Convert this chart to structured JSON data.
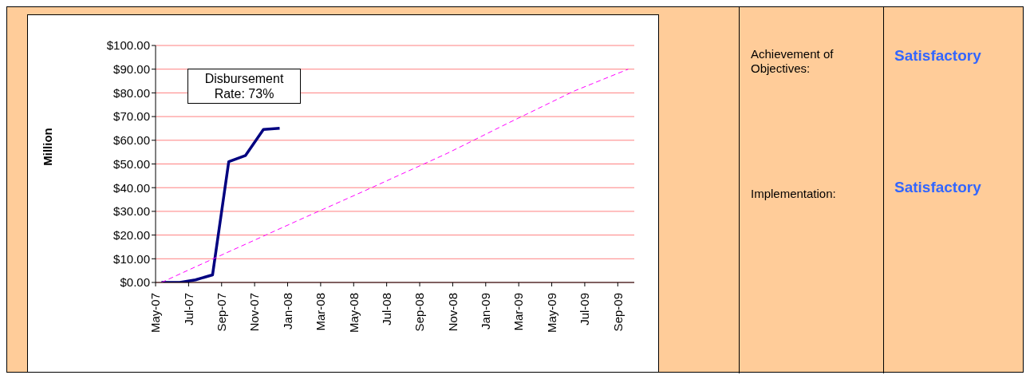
{
  "chart_data": {
    "type": "line",
    "ylabel": "Million",
    "annotations": [
      "Disbursement Rate: 73%",
      "Achievement of Objectives:",
      "Satisfactory",
      "Implementation:",
      "Satisfactory"
    ],
    "series": [
      {
        "color": "#000080",
        "line_style": "solid",
        "x": [
          "2007-05-12",
          "2007-06-15",
          "2007-07-14",
          "2007-08-15",
          "2007-09-14",
          "2007-10-15",
          "2007-11-17",
          "2007-12-17"
        ],
        "values": [
          0,
          0,
          1.1,
          3.2,
          51,
          53.6,
          64.6,
          65.1
        ]
      },
      {
        "color": "#ff00ff",
        "line_style": "dashed",
        "x": [
          "2007-05-12",
          "2007-07-14",
          "2008-01-17",
          "2008-05-17",
          "2008-10-21",
          "2009-02-09",
          "2009-06-12",
          "2009-09-20"
        ],
        "values": [
          0,
          6.6,
          25.8,
          38.2,
          54.4,
          67,
          80.8,
          90
        ]
      }
    ],
    "xlim": [
      "2007-05",
      "2009-10"
    ],
    "xticks": [
      {
        "value": "2007-05",
        "label": "May-07"
      },
      {
        "value": "2007-07",
        "label": "Jul-07"
      },
      {
        "value": "2007-09",
        "label": "Sep-07"
      },
      {
        "value": "2007-11",
        "label": "Nov-07"
      },
      {
        "value": "2008-01",
        "label": "Jan-08"
      },
      {
        "value": "2008-03",
        "label": "Mar-08"
      },
      {
        "value": "2008-05",
        "label": "May-08"
      },
      {
        "value": "2008-07",
        "label": "Jul-08"
      },
      {
        "value": "2008-09",
        "label": "Sep-08"
      },
      {
        "value": "2008-11",
        "label": "Nov-08"
      },
      {
        "value": "2009-01",
        "label": "Jan-09"
      },
      {
        "value": "2009-03",
        "label": "Mar-09"
      },
      {
        "value": "2009-05",
        "label": "May-09"
      },
      {
        "value": "2009-07",
        "label": "Jul-09"
      },
      {
        "value": "2009-09",
        "label": "Sep-09"
      }
    ],
    "ylim": [
      0,
      100
    ],
    "yticks": [
      {
        "value": 0,
        "label": "$0.00"
      },
      {
        "value": 10,
        "label": "$10.00"
      },
      {
        "value": 20,
        "label": "$20.00"
      },
      {
        "value": 30,
        "label": "$30.00"
      },
      {
        "value": 40,
        "label": "$40.00"
      },
      {
        "value": 50,
        "label": "$50.00"
      },
      {
        "value": 60,
        "label": "$60.00"
      },
      {
        "value": 70,
        "label": "$70.00"
      },
      {
        "value": 80,
        "label": "$80.00"
      },
      {
        "value": 90,
        "label": "$90.00"
      },
      {
        "value": 100,
        "label": "$100.00"
      }
    ],
    "grid": "y",
    "marker": "none",
    "legend": false
  }
}
